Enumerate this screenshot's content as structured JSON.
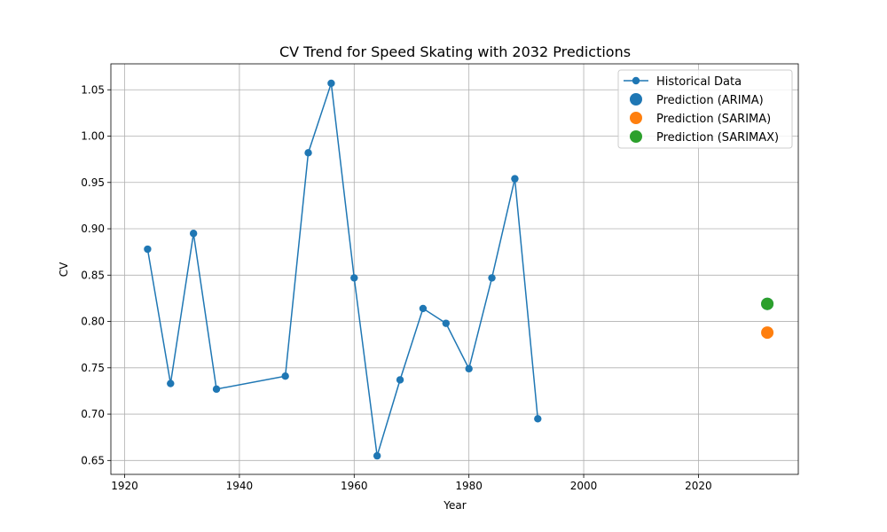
{
  "chart_data": {
    "type": "line",
    "title": "CV Trend for Speed Skating with 2032 Predictions",
    "xlabel": "Year",
    "ylabel": "CV",
    "xlim": [
      1917.6,
      2037.4
    ],
    "ylim": [
      0.635,
      1.078
    ],
    "x_ticks": [
      1920,
      1940,
      1960,
      1980,
      2000,
      2020
    ],
    "y_ticks": [
      0.65,
      0.7,
      0.75,
      0.8,
      0.85,
      0.9,
      0.95,
      1.0,
      1.05
    ],
    "x_tick_labels": [
      "1920",
      "1940",
      "1960",
      "1980",
      "2000",
      "2020"
    ],
    "y_tick_labels": [
      "0.65",
      "0.70",
      "0.75",
      "0.80",
      "0.85",
      "0.90",
      "0.95",
      "1.00",
      "1.05"
    ],
    "grid": true,
    "legend_position": "top-right",
    "series": [
      {
        "name": "Historical Data",
        "kind": "line",
        "color": "#1f77b4",
        "x": [
          1924,
          1928,
          1932,
          1936,
          1948,
          1952,
          1956,
          1960,
          1964,
          1968,
          1972,
          1976,
          1980,
          1984,
          1988,
          1992
        ],
        "y": [
          0.878,
          0.733,
          0.895,
          0.727,
          0.741,
          0.982,
          1.057,
          0.847,
          0.655,
          0.737,
          0.814,
          0.798,
          0.749,
          0.847,
          0.954,
          0.695
        ]
      },
      {
        "name": "Prediction (ARIMA)",
        "kind": "point",
        "color": "#1f77b4",
        "x": [
          2032
        ],
        "y": [
          0.819
        ]
      },
      {
        "name": "Prediction (SARIMA)",
        "kind": "point",
        "color": "#ff7f0e",
        "x": [
          2032
        ],
        "y": [
          0.788
        ]
      },
      {
        "name": "Prediction (SARIMAX)",
        "kind": "point",
        "color": "#2ca02c",
        "x": [
          2032
        ],
        "y": [
          0.819
        ]
      }
    ]
  }
}
